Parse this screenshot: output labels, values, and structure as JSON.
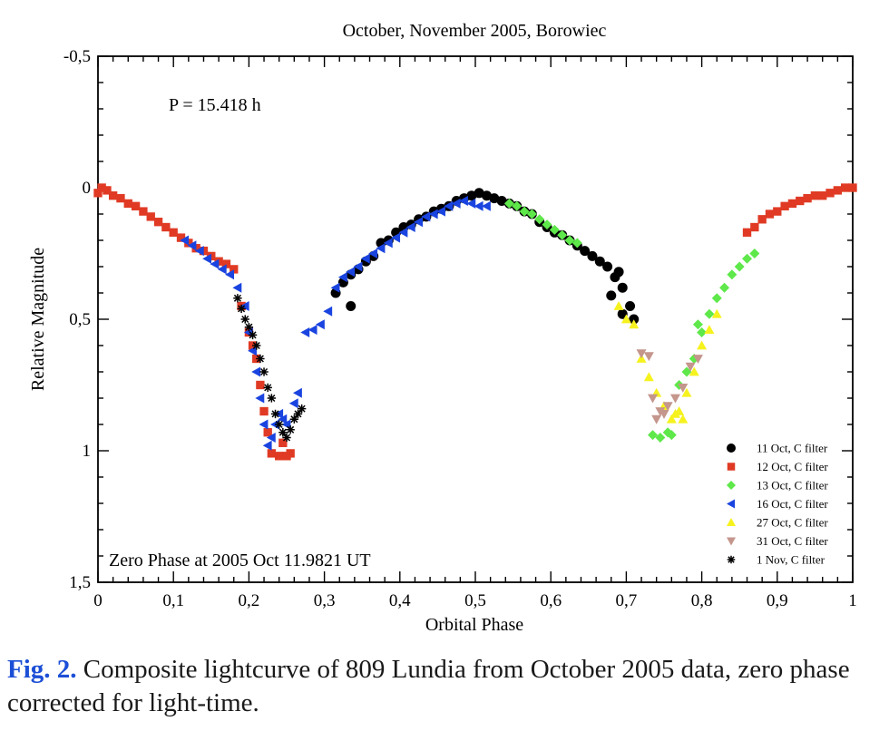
{
  "figure": {
    "caption_label": "Fig. 2.",
    "caption_text": " Composite lightcurve of 809 Lundia from October 2005 data, zero phase corrected for light-time."
  },
  "chart_data": {
    "type": "scatter",
    "title": "October, November  2005, Borowiec",
    "xlabel": "Orbital Phase",
    "ylabel": "Relative Magnitude",
    "xlim": [
      0,
      1
    ],
    "ylim": [
      1.5,
      -0.5
    ],
    "y_inverted": true,
    "grid": false,
    "legend_position": "bottom-right",
    "x_ticks": [
      "0",
      "0,1",
      "0,2",
      "0,3",
      "0,4",
      "0,5",
      "0,6",
      "0,7",
      "0,8",
      "0,9",
      "1"
    ],
    "y_ticks": [
      "-0,5",
      "0",
      "0,5",
      "1",
      "1,5"
    ],
    "annotations": [
      "P = 15.418 h",
      "Zero Phase at 2005 Oct 11.9821 UT"
    ],
    "series": [
      {
        "name": "11 Oct, C filter",
        "marker": "circle",
        "color": "#000000",
        "points": [
          [
            0.335,
            0.45
          ],
          [
            0.315,
            0.4
          ],
          [
            0.325,
            0.36
          ],
          [
            0.335,
            0.33
          ],
          [
            0.345,
            0.31
          ],
          [
            0.355,
            0.28
          ],
          [
            0.365,
            0.26
          ],
          [
            0.375,
            0.21
          ],
          [
            0.385,
            0.2
          ],
          [
            0.395,
            0.17
          ],
          [
            0.405,
            0.15
          ],
          [
            0.415,
            0.14
          ],
          [
            0.425,
            0.12
          ],
          [
            0.435,
            0.11
          ],
          [
            0.445,
            0.09
          ],
          [
            0.455,
            0.08
          ],
          [
            0.465,
            0.07
          ],
          [
            0.475,
            0.05
          ],
          [
            0.485,
            0.04
          ],
          [
            0.495,
            0.03
          ],
          [
            0.505,
            0.02
          ],
          [
            0.515,
            0.03
          ],
          [
            0.525,
            0.04
          ],
          [
            0.535,
            0.05
          ],
          [
            0.545,
            0.06
          ],
          [
            0.555,
            0.07
          ],
          [
            0.565,
            0.09
          ],
          [
            0.575,
            0.1
          ],
          [
            0.585,
            0.13
          ],
          [
            0.595,
            0.15
          ],
          [
            0.605,
            0.17
          ],
          [
            0.615,
            0.18
          ],
          [
            0.625,
            0.2
          ],
          [
            0.635,
            0.22
          ],
          [
            0.645,
            0.24
          ],
          [
            0.655,
            0.26
          ],
          [
            0.665,
            0.28
          ],
          [
            0.675,
            0.3
          ],
          [
            0.685,
            0.34
          ],
          [
            0.695,
            0.38
          ],
          [
            0.705,
            0.45
          ],
          [
            0.71,
            0.5
          ],
          [
            0.69,
            0.32
          ],
          [
            0.68,
            0.41
          ],
          [
            0.695,
            0.48
          ]
        ]
      },
      {
        "name": "12 Oct, C filter",
        "marker": "square",
        "color": "#e03a24",
        "points": [
          [
            0.0,
            0.02
          ],
          [
            0.005,
            0.0
          ],
          [
            0.012,
            0.01
          ],
          [
            0.02,
            0.03
          ],
          [
            0.03,
            0.04
          ],
          [
            0.04,
            0.06
          ],
          [
            0.05,
            0.07
          ],
          [
            0.06,
            0.09
          ],
          [
            0.07,
            0.11
          ],
          [
            0.08,
            0.13
          ],
          [
            0.09,
            0.15
          ],
          [
            0.1,
            0.17
          ],
          [
            0.11,
            0.19
          ],
          [
            0.12,
            0.21
          ],
          [
            0.13,
            0.23
          ],
          [
            0.14,
            0.24
          ],
          [
            0.15,
            0.26
          ],
          [
            0.16,
            0.28
          ],
          [
            0.17,
            0.29
          ],
          [
            0.18,
            0.31
          ],
          [
            0.19,
            0.45
          ],
          [
            0.2,
            0.55
          ],
          [
            0.205,
            0.6
          ],
          [
            0.21,
            0.65
          ],
          [
            0.215,
            0.75
          ],
          [
            0.22,
            0.85
          ],
          [
            0.225,
            0.93
          ],
          [
            0.23,
            1.01
          ],
          [
            0.24,
            1.02
          ],
          [
            0.25,
            1.02
          ],
          [
            0.255,
            1.01
          ],
          [
            0.245,
            0.97
          ],
          [
            0.86,
            0.17
          ],
          [
            0.87,
            0.15
          ],
          [
            0.88,
            0.12
          ],
          [
            0.89,
            0.1
          ],
          [
            0.9,
            0.09
          ],
          [
            0.91,
            0.07
          ],
          [
            0.92,
            0.06
          ],
          [
            0.93,
            0.05
          ],
          [
            0.94,
            0.04
          ],
          [
            0.95,
            0.03
          ],
          [
            0.96,
            0.03
          ],
          [
            0.97,
            0.02
          ],
          [
            0.98,
            0.01
          ],
          [
            0.99,
            0.0
          ],
          [
            1.0,
            0.0
          ]
        ]
      },
      {
        "name": "13 Oct, C filter",
        "marker": "diamond",
        "color": "#5ee84a",
        "points": [
          [
            0.545,
            0.06
          ],
          [
            0.555,
            0.07
          ],
          [
            0.565,
            0.09
          ],
          [
            0.575,
            0.1
          ],
          [
            0.585,
            0.12
          ],
          [
            0.595,
            0.14
          ],
          [
            0.605,
            0.16
          ],
          [
            0.615,
            0.18
          ],
          [
            0.625,
            0.2
          ],
          [
            0.635,
            0.21
          ],
          [
            0.735,
            0.94
          ],
          [
            0.745,
            0.95
          ],
          [
            0.755,
            0.93
          ],
          [
            0.76,
            0.94
          ],
          [
            0.77,
            0.75
          ],
          [
            0.78,
            0.7
          ],
          [
            0.79,
            0.65
          ],
          [
            0.8,
            0.55
          ],
          [
            0.81,
            0.48
          ],
          [
            0.82,
            0.42
          ],
          [
            0.83,
            0.38
          ],
          [
            0.84,
            0.33
          ],
          [
            0.85,
            0.3
          ],
          [
            0.86,
            0.27
          ],
          [
            0.87,
            0.25
          ],
          [
            0.795,
            0.52
          ]
        ]
      },
      {
        "name": "16 Oct, C filter",
        "marker": "triangle-left",
        "color": "#1a44e0",
        "points": [
          [
            0.115,
            0.2
          ],
          [
            0.125,
            0.22
          ],
          [
            0.135,
            0.24
          ],
          [
            0.145,
            0.27
          ],
          [
            0.155,
            0.29
          ],
          [
            0.165,
            0.31
          ],
          [
            0.175,
            0.33
          ],
          [
            0.185,
            0.38
          ],
          [
            0.195,
            0.45
          ],
          [
            0.2,
            0.55
          ],
          [
            0.205,
            0.62
          ],
          [
            0.21,
            0.7
          ],
          [
            0.215,
            0.8
          ],
          [
            0.22,
            0.9
          ],
          [
            0.225,
            0.98
          ],
          [
            0.23,
            0.95
          ],
          [
            0.235,
            0.9
          ],
          [
            0.24,
            0.86
          ],
          [
            0.245,
            0.88
          ],
          [
            0.25,
            0.9
          ],
          [
            0.26,
            0.82
          ],
          [
            0.265,
            0.78
          ],
          [
            0.275,
            0.55
          ],
          [
            0.285,
            0.54
          ],
          [
            0.295,
            0.52
          ],
          [
            0.305,
            0.47
          ],
          [
            0.315,
            0.38
          ],
          [
            0.325,
            0.34
          ],
          [
            0.335,
            0.32
          ],
          [
            0.345,
            0.3
          ],
          [
            0.355,
            0.27
          ],
          [
            0.365,
            0.25
          ],
          [
            0.375,
            0.23
          ],
          [
            0.385,
            0.21
          ],
          [
            0.395,
            0.19
          ],
          [
            0.405,
            0.17
          ],
          [
            0.415,
            0.15
          ],
          [
            0.425,
            0.13
          ],
          [
            0.435,
            0.11
          ],
          [
            0.445,
            0.1
          ],
          [
            0.455,
            0.09
          ],
          [
            0.465,
            0.07
          ],
          [
            0.475,
            0.06
          ],
          [
            0.485,
            0.05
          ],
          [
            0.495,
            0.06
          ],
          [
            0.505,
            0.07
          ],
          [
            0.515,
            0.07
          ]
        ]
      },
      {
        "name": "27 Oct, C filter",
        "marker": "triangle-up",
        "color": "#f6f21e",
        "points": [
          [
            0.69,
            0.45
          ],
          [
            0.7,
            0.5
          ],
          [
            0.71,
            0.52
          ],
          [
            0.72,
            0.65
          ],
          [
            0.73,
            0.72
          ],
          [
            0.74,
            0.78
          ],
          [
            0.75,
            0.83
          ],
          [
            0.76,
            0.88
          ],
          [
            0.77,
            0.85
          ],
          [
            0.78,
            0.78
          ],
          [
            0.79,
            0.7
          ],
          [
            0.8,
            0.6
          ],
          [
            0.81,
            0.54
          ],
          [
            0.82,
            0.48
          ],
          [
            0.775,
            0.88
          ],
          [
            0.765,
            0.86
          ]
        ]
      },
      {
        "name": "31 Oct, C filter",
        "marker": "triangle-down",
        "color": "#c4968c",
        "points": [
          [
            0.72,
            0.63
          ],
          [
            0.73,
            0.64
          ],
          [
            0.735,
            0.8
          ],
          [
            0.745,
            0.85
          ],
          [
            0.75,
            0.86
          ],
          [
            0.755,
            0.83
          ],
          [
            0.765,
            0.8
          ],
          [
            0.775,
            0.76
          ],
          [
            0.785,
            0.68
          ],
          [
            0.795,
            0.65
          ],
          [
            0.74,
            0.88
          ]
        ]
      },
      {
        "name": "1 Nov, C filter",
        "marker": "star",
        "color": "#000000",
        "points": [
          [
            0.185,
            0.42
          ],
          [
            0.19,
            0.46
          ],
          [
            0.195,
            0.5
          ],
          [
            0.2,
            0.53
          ],
          [
            0.205,
            0.56
          ],
          [
            0.21,
            0.6
          ],
          [
            0.215,
            0.65
          ],
          [
            0.22,
            0.7
          ],
          [
            0.225,
            0.76
          ],
          [
            0.23,
            0.8
          ],
          [
            0.235,
            0.86
          ],
          [
            0.24,
            0.9
          ],
          [
            0.245,
            0.93
          ],
          [
            0.25,
            0.95
          ],
          [
            0.255,
            0.92
          ],
          [
            0.26,
            0.88
          ],
          [
            0.265,
            0.86
          ],
          [
            0.27,
            0.84
          ]
        ]
      }
    ]
  }
}
